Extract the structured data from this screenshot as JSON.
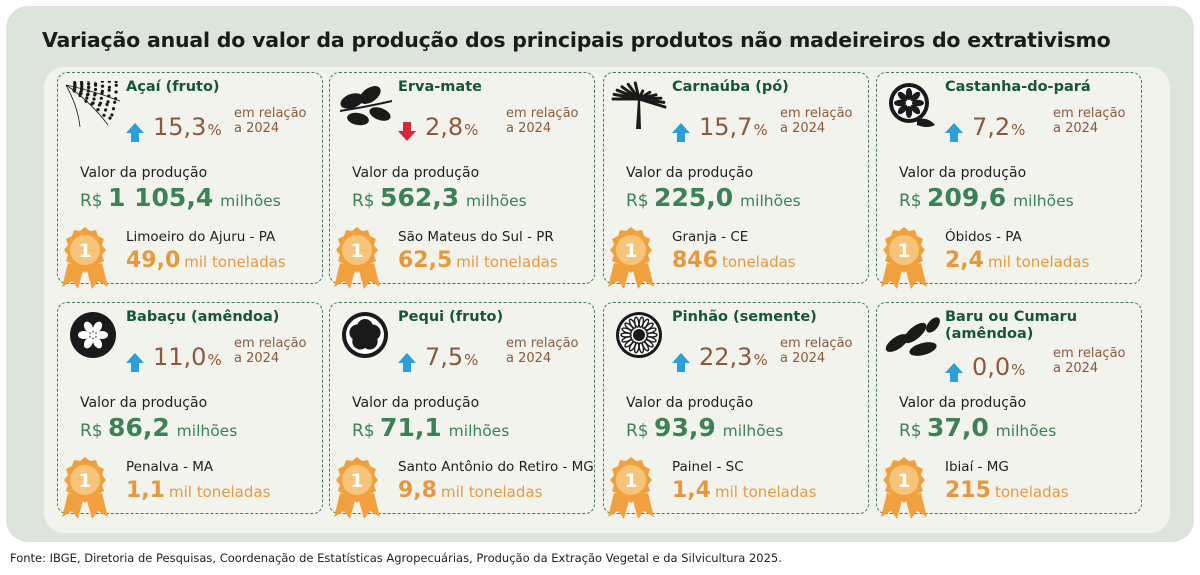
{
  "title": "Variação anual do valor da produção dos principais produtos não madeireiros do extrativismo",
  "source": "Fonte: IBGE, Diretoria de Pesquisas, Coordenação de Estatísticas Agropecuárias, Produção da Extração Vegetal e da Silvicultura 2025.",
  "colors": {
    "frame": "#dde4dc",
    "panel": "#f2f3ec",
    "name": "#14563a",
    "variation": "#8c5a3b",
    "value": "#3b8255",
    "quantity": "#e8983c",
    "arrow_up": "#2d9fd8",
    "arrow_down": "#d92638",
    "medal": "#f0a13e"
  },
  "labels": {
    "relation": [
      "em relação",
      "a 2024"
    ],
    "production_value": "Valor da produção",
    "currency": "R$",
    "medal_rank": "1"
  },
  "chart_data": {
    "type": "table",
    "title": "Variação anual do valor da produção dos principais produtos não madeireiros do extrativismo",
    "columns": [
      "produto",
      "variação (%)",
      "direção",
      "valor da produção (R$ milhões)",
      "maior produtor",
      "quantidade"
    ],
    "rows": [
      {
        "name": "Açaí (fruto)",
        "icon": "acai-icon",
        "direction": "up",
        "pct_text": "15,3",
        "pct": 15.3,
        "value_text": "1 105,4",
        "value": 1105.4,
        "unit": "milhões",
        "place": "Limoeiro do Ajuru - PA",
        "qty_text": "49,0",
        "qty": 49.0,
        "qty_unit": "mil toneladas"
      },
      {
        "name": "Erva-mate",
        "icon": "erva-mate-icon",
        "direction": "down",
        "pct_text": "2,8",
        "pct": 2.8,
        "value_text": "562,3",
        "value": 562.3,
        "unit": "milhões",
        "place": "São Mateus do Sul - PR",
        "qty_text": "62,5",
        "qty": 62.5,
        "qty_unit": "mil toneladas"
      },
      {
        "name": "Carnaúba (pó)",
        "icon": "carnauba-icon",
        "direction": "up",
        "pct_text": "15,7",
        "pct": 15.7,
        "value_text": "225,0",
        "value": 225.0,
        "unit": "milhões",
        "place": "Granja - CE",
        "qty_text": "846",
        "qty": 846,
        "qty_unit": "toneladas"
      },
      {
        "name": "Castanha-do-pará",
        "icon": "castanha-icon",
        "direction": "up",
        "pct_text": "7,2",
        "pct": 7.2,
        "value_text": "209,6",
        "value": 209.6,
        "unit": "milhões",
        "place": "Óbidos - PA",
        "qty_text": "2,4",
        "qty": 2.4,
        "qty_unit": "mil toneladas"
      },
      {
        "name": "Babaçu (amêndoa)",
        "icon": "babacu-icon",
        "direction": "up",
        "pct_text": "11,0",
        "pct": 11.0,
        "value_text": "86,2",
        "value": 86.2,
        "unit": "milhões",
        "place": "Penalva - MA",
        "qty_text": "1,1",
        "qty": 1.1,
        "qty_unit": "mil toneladas"
      },
      {
        "name": "Pequi (fruto)",
        "icon": "pequi-icon",
        "direction": "up",
        "pct_text": "7,5",
        "pct": 7.5,
        "value_text": "71,1",
        "value": 71.1,
        "unit": "milhões",
        "place": "Santo Antônio do Retiro - MG",
        "qty_text": "9,8",
        "qty": 9.8,
        "qty_unit": "mil toneladas"
      },
      {
        "name": "Pinhão (semente)",
        "icon": "pinhao-icon",
        "direction": "up",
        "pct_text": "22,3",
        "pct": 22.3,
        "value_text": "93,9",
        "value": 93.9,
        "unit": "milhões",
        "place": "Painel - SC",
        "qty_text": "1,4",
        "qty": 1.4,
        "qty_unit": "mil toneladas"
      },
      {
        "name": "Baru ou Cumaru (amêndoa)",
        "icon": "baru-icon",
        "direction": "up",
        "pct_text": "0,0",
        "pct": 0.0,
        "value_text": "37,0",
        "value": 37.0,
        "unit": "milhões",
        "place": "Ibiaí - MG",
        "qty_text": "215",
        "qty": 215,
        "qty_unit": "toneladas"
      }
    ]
  }
}
